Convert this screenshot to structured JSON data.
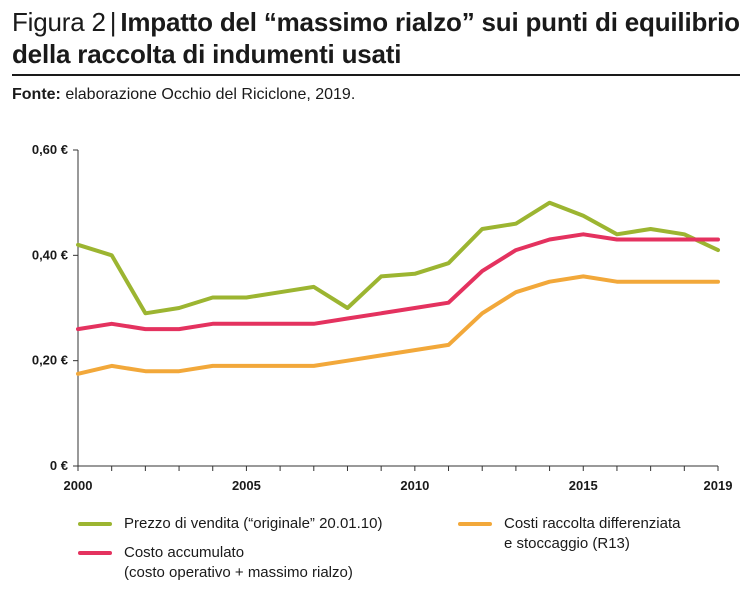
{
  "header": {
    "prefix": "Figura 2",
    "separator": "|",
    "title_line1": "Impatto del “massimo rialzo” sui punti di equilibrio",
    "title_line2": "della raccolta di indumenti usati",
    "source_label": "Fonte:",
    "source_text": " elaborazione Occhio del Riciclone, 2019."
  },
  "chart_data": {
    "type": "line",
    "x": [
      2000,
      2001,
      2002,
      2003,
      2004,
      2005,
      2006,
      2007,
      2008,
      2009,
      2010,
      2011,
      2012,
      2013,
      2014,
      2015,
      2016,
      2017,
      2018,
      2019
    ],
    "x_ticks": [
      "2000",
      "2005",
      "2010",
      "2015",
      "2019"
    ],
    "x_tick_values": [
      2000,
      2005,
      2010,
      2015,
      2019
    ],
    "y_ticks": [
      "0 €",
      "0,20 €",
      "0,40 €",
      "0,60 €"
    ],
    "y_tick_values": [
      0,
      0.2,
      0.4,
      0.6
    ],
    "ylim": [
      0,
      0.6
    ],
    "xlim": [
      2000,
      2019
    ],
    "series": [
      {
        "name": "Prezzo di vendita (“originale” 20.01.10)",
        "color": "#9cb531",
        "values": [
          0.42,
          0.4,
          0.29,
          0.3,
          0.32,
          0.32,
          0.33,
          0.34,
          0.3,
          0.36,
          0.365,
          0.385,
          0.45,
          0.46,
          0.5,
          0.475,
          0.44,
          0.45,
          0.44,
          0.41
        ]
      },
      {
        "name": "Costo accumulato (costo operativo + massimo rialzo)",
        "color": "#e4325f",
        "values": [
          0.26,
          0.27,
          0.26,
          0.26,
          0.27,
          0.27,
          0.27,
          0.27,
          0.28,
          0.29,
          0.3,
          0.31,
          0.37,
          0.41,
          0.43,
          0.44,
          0.43,
          0.43,
          0.43,
          0.43
        ]
      },
      {
        "name": "Costi raccolta differenziata e stoccaggio (R13)",
        "color": "#f2a83a",
        "values": [
          0.175,
          0.19,
          0.18,
          0.18,
          0.19,
          0.19,
          0.19,
          0.19,
          0.2,
          0.21,
          0.22,
          0.23,
          0.29,
          0.33,
          0.35,
          0.36,
          0.35,
          0.35,
          0.35,
          0.35
        ]
      }
    ],
    "grid": false,
    "legend_position": "bottom"
  },
  "legend": {
    "item1_label": "Prezzo di vendita (“originale” 20.01.10)",
    "item2_line1": "Costo accumulato",
    "item2_line2": "(costo operativo + massimo rialzo)",
    "item3_line1": "Costi raccolta differenziata",
    "item3_line2": "e stoccaggio (R13)"
  }
}
